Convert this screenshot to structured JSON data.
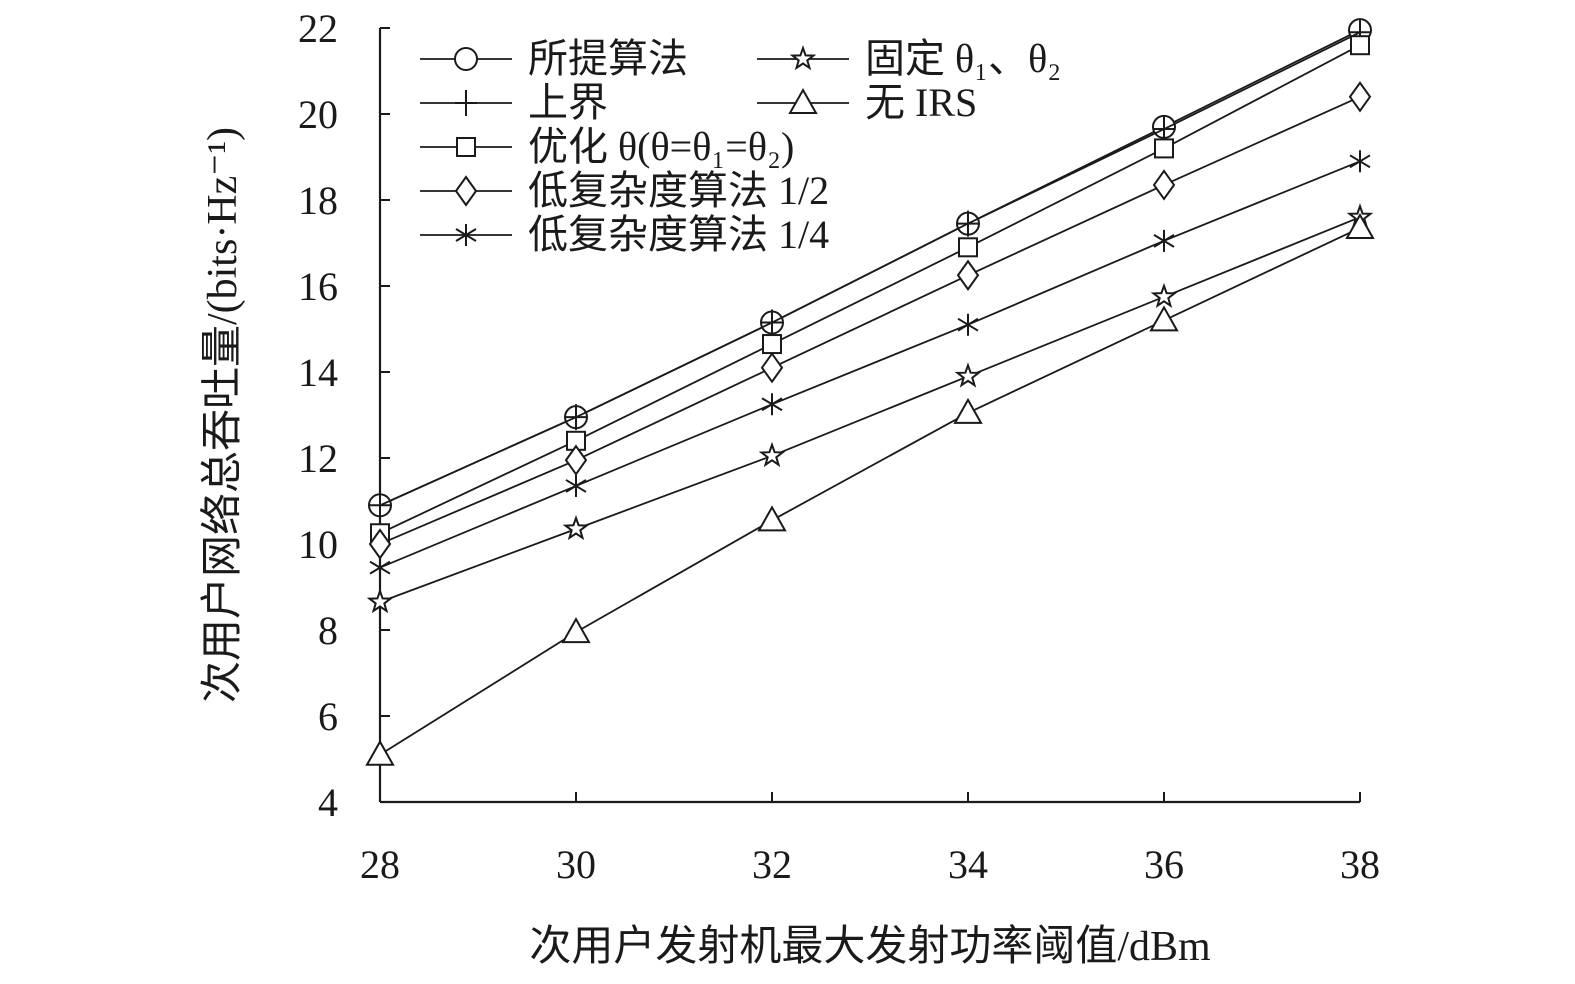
{
  "chart_data": {
    "type": "line",
    "xlabel": "次用户发射机最大发射功率阈值/dBm",
    "ylabel": "次用户网络总吞吐量/(bits·Hz⁻¹)",
    "x": [
      28,
      30,
      32,
      34,
      36,
      38
    ],
    "xlim": [
      28,
      38
    ],
    "ylim": [
      4,
      22
    ],
    "xticks": [
      "28",
      "30",
      "32",
      "34",
      "36",
      "38"
    ],
    "yticks": [
      "4",
      "6",
      "8",
      "10",
      "12",
      "14",
      "16",
      "18",
      "20",
      "22"
    ],
    "grid": false,
    "legend_position": "top-left",
    "series": [
      {
        "name": "所提算法",
        "marker": "circle",
        "values": [
          10.9,
          12.95,
          15.15,
          17.45,
          19.7,
          21.95
        ]
      },
      {
        "name": "上界",
        "marker": "plus",
        "values": [
          10.9,
          12.95,
          15.15,
          17.45,
          19.65,
          21.9
        ]
      },
      {
        "name": "优化 θ(θ=θ₁=θ₂)",
        "marker": "square",
        "values": [
          10.25,
          12.4,
          14.65,
          16.9,
          19.2,
          21.6
        ]
      },
      {
        "name": "低复杂度算法 1/2",
        "marker": "diamond",
        "values": [
          10.0,
          11.95,
          14.1,
          16.25,
          18.35,
          20.4
        ]
      },
      {
        "name": "低复杂度算法 1/4",
        "marker": "asterisk",
        "values": [
          9.45,
          11.35,
          13.25,
          15.1,
          17.05,
          18.9
        ]
      },
      {
        "name": "固定 θ₁、θ₂",
        "marker": "star",
        "values": [
          8.65,
          10.35,
          12.05,
          13.9,
          15.75,
          17.6
        ]
      },
      {
        "name": "无 IRS",
        "marker": "triangle",
        "values": [
          5.1,
          7.95,
          10.55,
          13.05,
          15.2,
          17.35
        ]
      }
    ]
  }
}
